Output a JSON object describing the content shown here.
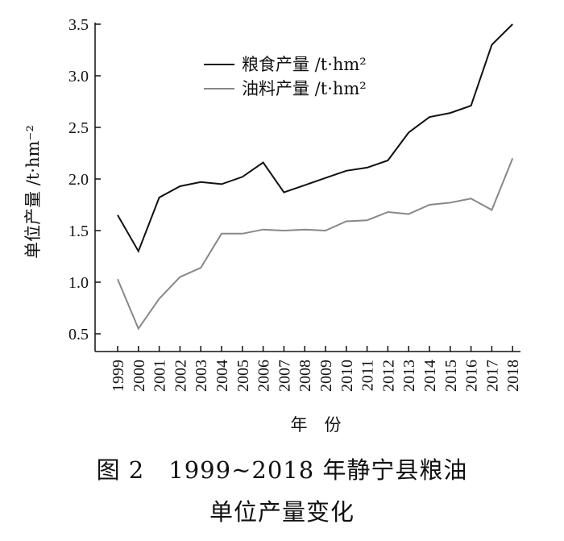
{
  "caption": {
    "line1": "图 2　1999~2018 年静宁县粮油",
    "line2": "单位产量变化"
  },
  "chart_data": {
    "type": "line",
    "title": "",
    "xlabel": "年　份",
    "ylabel": "单位产量 /t·hm⁻²",
    "ylim": [
      0.5,
      3.5
    ],
    "yticks": [
      "0.5",
      "1.0",
      "1.5",
      "2.0",
      "2.5",
      "3.0",
      "3.5"
    ],
    "x": [
      "1999",
      "2000",
      "2001",
      "2002",
      "2003",
      "2004",
      "2005",
      "2006",
      "2007",
      "2008",
      "2009",
      "2010",
      "2011",
      "2012",
      "2013",
      "2014",
      "2015",
      "2016",
      "2017",
      "2018"
    ],
    "grid": false,
    "legend_position": "top-left",
    "series": [
      {
        "name": "粮食产量 /t·hm²",
        "color": "#111111",
        "values": [
          1.65,
          1.3,
          1.82,
          1.93,
          1.97,
          1.95,
          2.02,
          2.16,
          1.87,
          1.94,
          2.01,
          2.08,
          2.11,
          2.18,
          2.45,
          2.6,
          2.64,
          2.71,
          3.3,
          3.5
        ]
      },
      {
        "name": "油料产量 /t·hm²",
        "color": "#888888",
        "values": [
          1.03,
          0.55,
          0.84,
          1.05,
          1.14,
          1.47,
          1.47,
          1.51,
          1.5,
          1.51,
          1.5,
          1.59,
          1.6,
          1.68,
          1.66,
          1.75,
          1.77,
          1.81,
          1.7,
          2.2
        ]
      }
    ]
  }
}
